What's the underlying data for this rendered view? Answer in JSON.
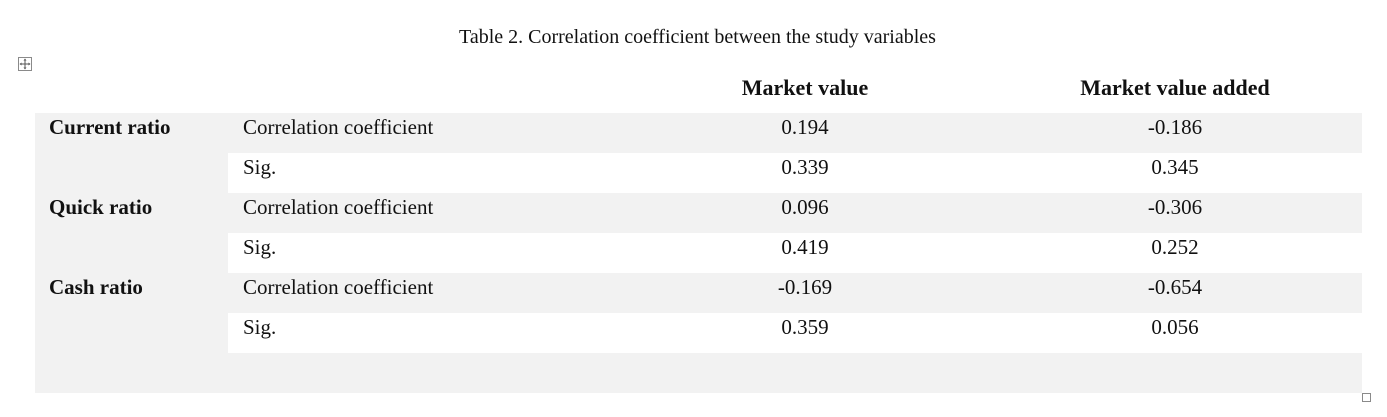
{
  "caption": "Table 2. Correlation coefficient between the study variables",
  "table": {
    "headers": {
      "market_value": "Market value",
      "market_value_added": "Market value added"
    },
    "rows": [
      {
        "group": "Current ratio",
        "stat": "Correlation coefficient",
        "market_value": "0.194",
        "market_value_added": "-0.186"
      },
      {
        "group": "",
        "stat": "Sig.",
        "market_value": "0.339",
        "market_value_added": "0.345"
      },
      {
        "group": "Quick ratio",
        "stat": "Correlation coefficient",
        "market_value": "0.096",
        "market_value_added": "-0.306"
      },
      {
        "group": "",
        "stat": "Sig.",
        "market_value": "0.419",
        "market_value_added": "0.252"
      },
      {
        "group": "Cash ratio",
        "stat": "Correlation coefficient",
        "market_value": "-0.169",
        "market_value_added": "-0.654"
      },
      {
        "group": "",
        "stat": "Sig.",
        "market_value": "0.359",
        "market_value_added": "0.056"
      }
    ]
  },
  "icons": {
    "move_handle": "move-cross-icon",
    "resize_handle": "resize-square-icon"
  },
  "colors": {
    "row_shading": "#f2f2f2",
    "text": "#111111"
  }
}
